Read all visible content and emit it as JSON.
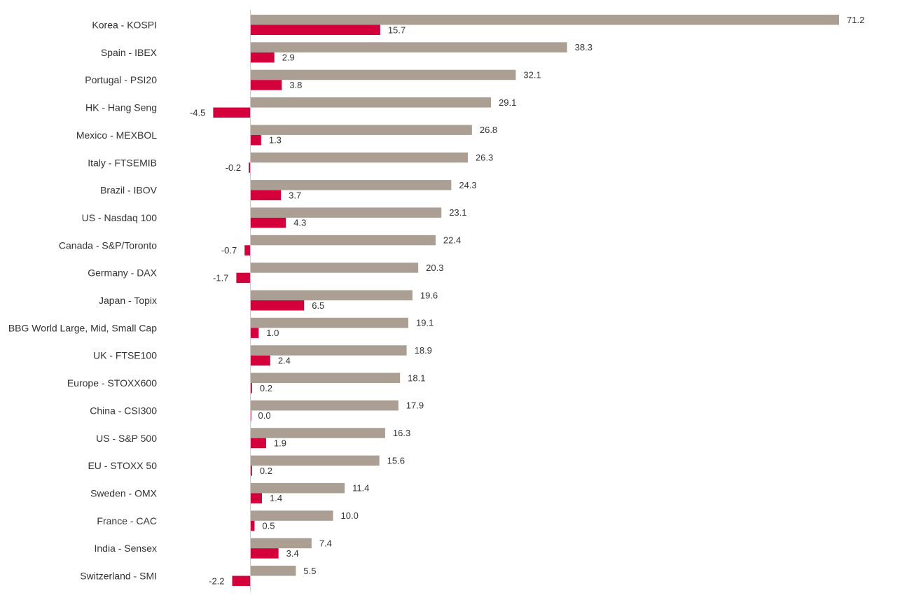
{
  "colors": {
    "series_a": "#ab9f93",
    "series_b": "#d4003b",
    "axis": "#cccccc",
    "text": "#333333"
  },
  "chart_data": {
    "type": "bar",
    "orientation": "horizontal",
    "title": "",
    "xlabel": "",
    "ylabel": "",
    "grid": false,
    "legend": "none",
    "xlim": [
      -10,
      75
    ],
    "categories": [
      "Korea - KOSPI",
      "Spain - IBEX",
      "Portugal - PSI20",
      "HK - Hang Seng",
      "Mexico - MEXBOL",
      "Italy - FTSEMIB",
      "Brazil - IBOV",
      "US - Nasdaq 100",
      "Canada - S&P/Toronto",
      "Germany - DAX",
      "Japan - Topix",
      "BBG World Large, Mid, Small Cap",
      "UK - FTSE100",
      "Europe - STOXX600",
      "China - CSI300",
      "US - S&P 500",
      "EU - STOXX 50",
      "Sweden - OMX",
      "France - CAC",
      "India - Sensex",
      "Switzerland - SMI"
    ],
    "series": [
      {
        "values": [
          71.2,
          38.3,
          32.1,
          29.1,
          26.8,
          26.3,
          24.3,
          23.1,
          22.4,
          20.3,
          19.6,
          19.1,
          18.9,
          18.1,
          17.9,
          16.3,
          15.6,
          11.4,
          10.0,
          7.4,
          5.5
        ],
        "labels": [
          "71.2",
          "38.3",
          "32.1",
          "29.1",
          "26.8",
          "26.3",
          "24.3",
          "23.1",
          "22.4",
          "20.3",
          "19.6",
          "19.1",
          "18.9",
          "18.1",
          "17.9",
          "16.3",
          "15.6",
          "11.4",
          "10.0",
          "7.4",
          "5.5"
        ]
      },
      {
        "values": [
          15.7,
          2.9,
          3.8,
          -4.5,
          1.3,
          -0.2,
          3.7,
          4.3,
          -0.7,
          -1.7,
          6.5,
          1.0,
          2.4,
          0.2,
          0.0,
          1.9,
          0.2,
          1.4,
          0.5,
          3.4,
          -2.2
        ],
        "labels": [
          "15.7",
          "2.9",
          "3.8",
          "-4.5",
          "1.3",
          "-0.2",
          "3.7",
          "4.3",
          "-0.7",
          "-1.7",
          "6.5",
          "1.0",
          "2.4",
          "0.2",
          "0.0",
          "1.9",
          "0.2",
          "1.4",
          "0.5",
          "3.4",
          "-2.2"
        ]
      }
    ]
  }
}
